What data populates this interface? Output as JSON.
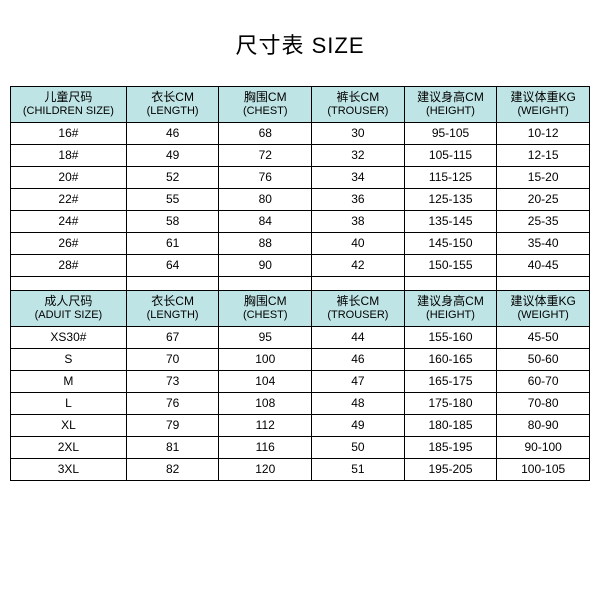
{
  "title": "尺寸表 SIZE",
  "header_bg": "#bfe4e5",
  "children": {
    "columns": [
      {
        "l1": "儿童尺码",
        "l2": "(CHILDREN SIZE)"
      },
      {
        "l1": "衣长CM",
        "l2": "(LENGTH)"
      },
      {
        "l1": "胸围CM",
        "l2": "(CHEST)"
      },
      {
        "l1": "裤长CM",
        "l2": "(TROUSER)"
      },
      {
        "l1": "建议身高CM",
        "l2": "(HEIGHT)"
      },
      {
        "l1": "建议体重KG",
        "l2": "(WEIGHT)"
      }
    ],
    "rows": [
      [
        "16#",
        "46",
        "68",
        "30",
        "95-105",
        "10-12"
      ],
      [
        "18#",
        "49",
        "72",
        "32",
        "105-115",
        "12-15"
      ],
      [
        "20#",
        "52",
        "76",
        "34",
        "115-125",
        "15-20"
      ],
      [
        "22#",
        "55",
        "80",
        "36",
        "125-135",
        "20-25"
      ],
      [
        "24#",
        "58",
        "84",
        "38",
        "135-145",
        "25-35"
      ],
      [
        "26#",
        "61",
        "88",
        "40",
        "145-150",
        "35-40"
      ],
      [
        "28#",
        "64",
        "90",
        "42",
        "150-155",
        "40-45"
      ]
    ]
  },
  "adult": {
    "columns": [
      {
        "l1": "成人尺码",
        "l2": "(ADUIT SIZE)"
      },
      {
        "l1": "衣长CM",
        "l2": "(LENGTH)"
      },
      {
        "l1": "胸围CM",
        "l2": "(CHEST)"
      },
      {
        "l1": "裤长CM",
        "l2": "(TROUSER)"
      },
      {
        "l1": "建议身高CM",
        "l2": "(HEIGHT)"
      },
      {
        "l1": "建议体重KG",
        "l2": "(WEIGHT)"
      }
    ],
    "rows": [
      [
        "XS30#",
        "67",
        "95",
        "44",
        "155-160",
        "45-50"
      ],
      [
        "S",
        "70",
        "100",
        "46",
        "160-165",
        "50-60"
      ],
      [
        "M",
        "73",
        "104",
        "47",
        "165-175",
        "60-70"
      ],
      [
        "L",
        "76",
        "108",
        "48",
        "175-180",
        "70-80"
      ],
      [
        "XL",
        "79",
        "112",
        "49",
        "180-185",
        "80-90"
      ],
      [
        "2XL",
        "81",
        "116",
        "50",
        "185-195",
        "90-100"
      ],
      [
        "3XL",
        "82",
        "120",
        "51",
        "195-205",
        "100-105"
      ]
    ]
  }
}
